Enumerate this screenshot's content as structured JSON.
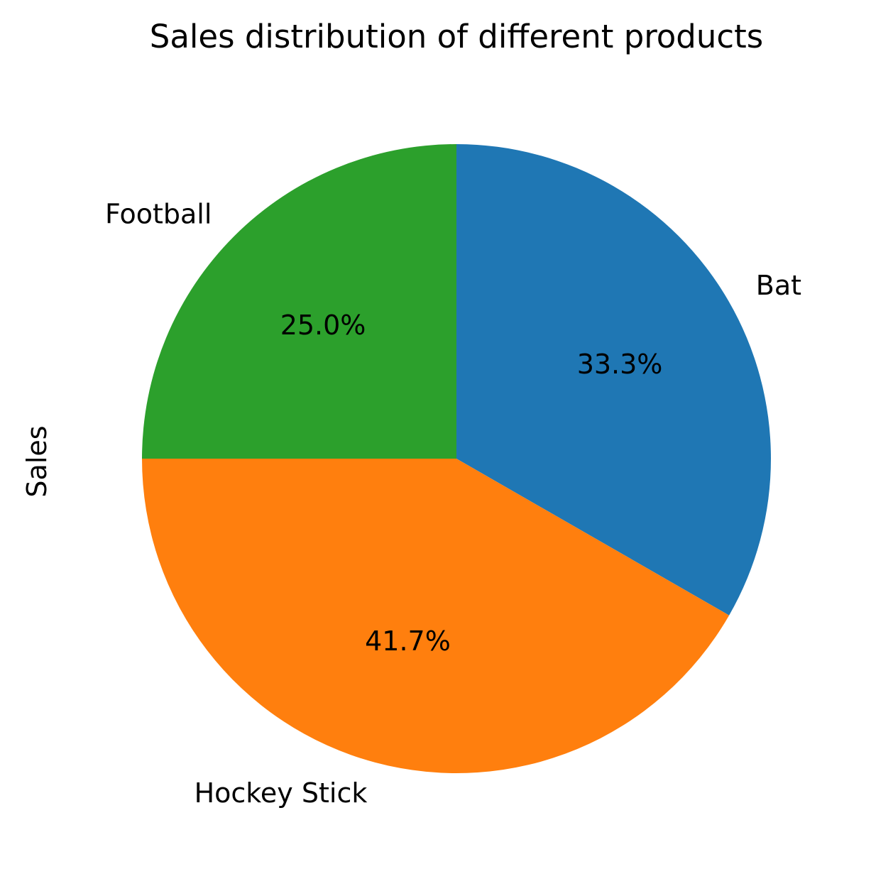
{
  "chart_data": {
    "type": "pie",
    "title": "Sales distribution of different products",
    "ylabel": "Sales",
    "slices": [
      {
        "label": "Bat",
        "percent": 33.3,
        "pct_label": "33.3%",
        "color": "#1f77b4"
      },
      {
        "label": "Hockey Stick",
        "percent": 41.7,
        "pct_label": "41.7%",
        "color": "#ff7f0e"
      },
      {
        "label": "Football",
        "percent": 25.0,
        "pct_label": "25.0%",
        "color": "#2ca02c"
      }
    ]
  }
}
